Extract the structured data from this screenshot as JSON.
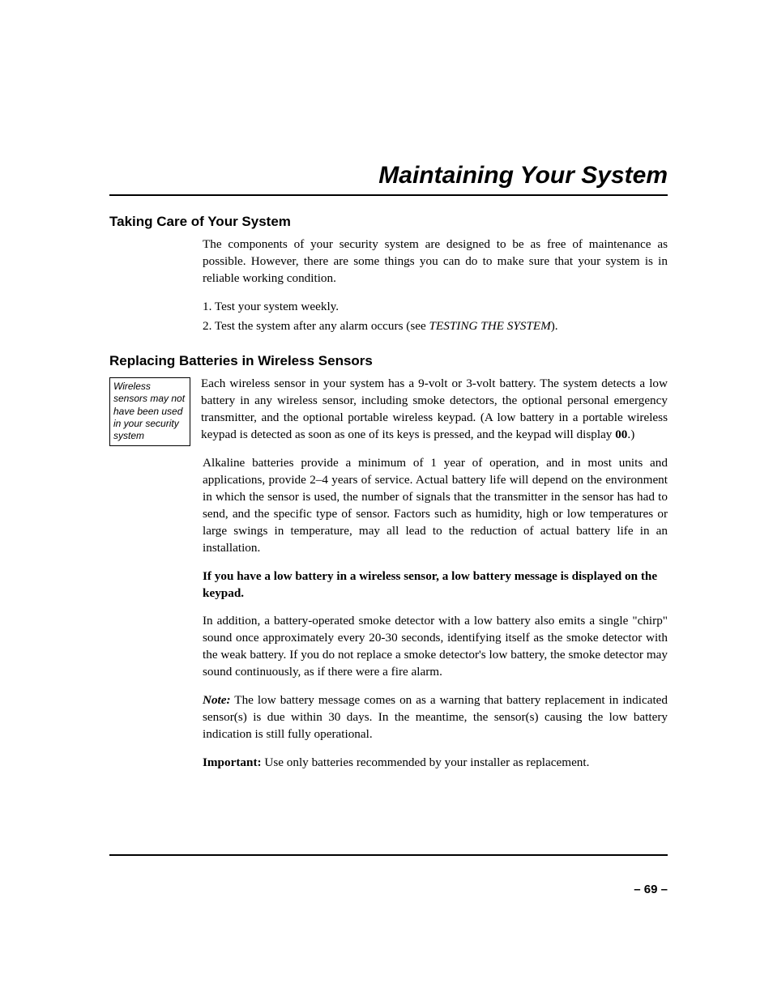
{
  "title": "Maintaining Your System",
  "section1": {
    "heading": "Taking Care of Your System",
    "p1": "The components of your security system are designed to be as free of maintenance as possible. However, there are some things you can do to make sure that your system is in reliable working condition.",
    "li1": "1.  Test your system weekly.",
    "li2a": "2.  Test the system after any alarm occurs (see ",
    "li2b": "TESTING THE SYSTEM",
    "li2c": ")."
  },
  "section2": {
    "heading": "Replacing Batteries in Wireless Sensors",
    "sidenote": "Wireless sensors may not have been used in your security system",
    "p1a": "Each wireless sensor in your system has a 9-volt or 3-volt battery. The system detects a low battery in any wireless sensor, including smoke detectors, the optional personal emergency transmitter, and the optional portable wireless keypad. (A low battery in a portable wireless keypad is detected as soon as one of its keys is pressed, and the keypad will display ",
    "p1b": "00",
    "p1c": ".)",
    "p2": "Alkaline batteries provide a minimum of 1 year of operation, and in most units and applications, provide 2–4 years of service. Actual battery life will depend on the environment in which the sensor is used, the number of signals that the transmitter in the sensor has had to send, and the specific type of sensor.  Factors such as humidity, high or low temperatures or large swings in temperature, may all lead to the reduction of actual battery life in an installation.",
    "p3": "If you have a low battery in a wireless sensor, a low battery message is displayed on the keypad.",
    "p4": "In addition, a battery-operated smoke detector with a low battery also emits a single \"chirp\" sound once approximately every 20-30 seconds, identifying itself as the smoke detector with the weak battery.  If you do not replace a smoke detector's low battery, the smoke detector may sound continuously, as if there were a fire alarm.",
    "p5a": "Note:",
    "p5b": "  The low battery message comes on as a warning that battery replacement in indicated sensor(s) is due within 30 days. In the meantime, the sensor(s) causing the low battery indication is still fully operational.",
    "p6a": "Important:",
    "p6b": "  Use only batteries recommended by your installer as replacement."
  },
  "pagenum": "– 69 –"
}
